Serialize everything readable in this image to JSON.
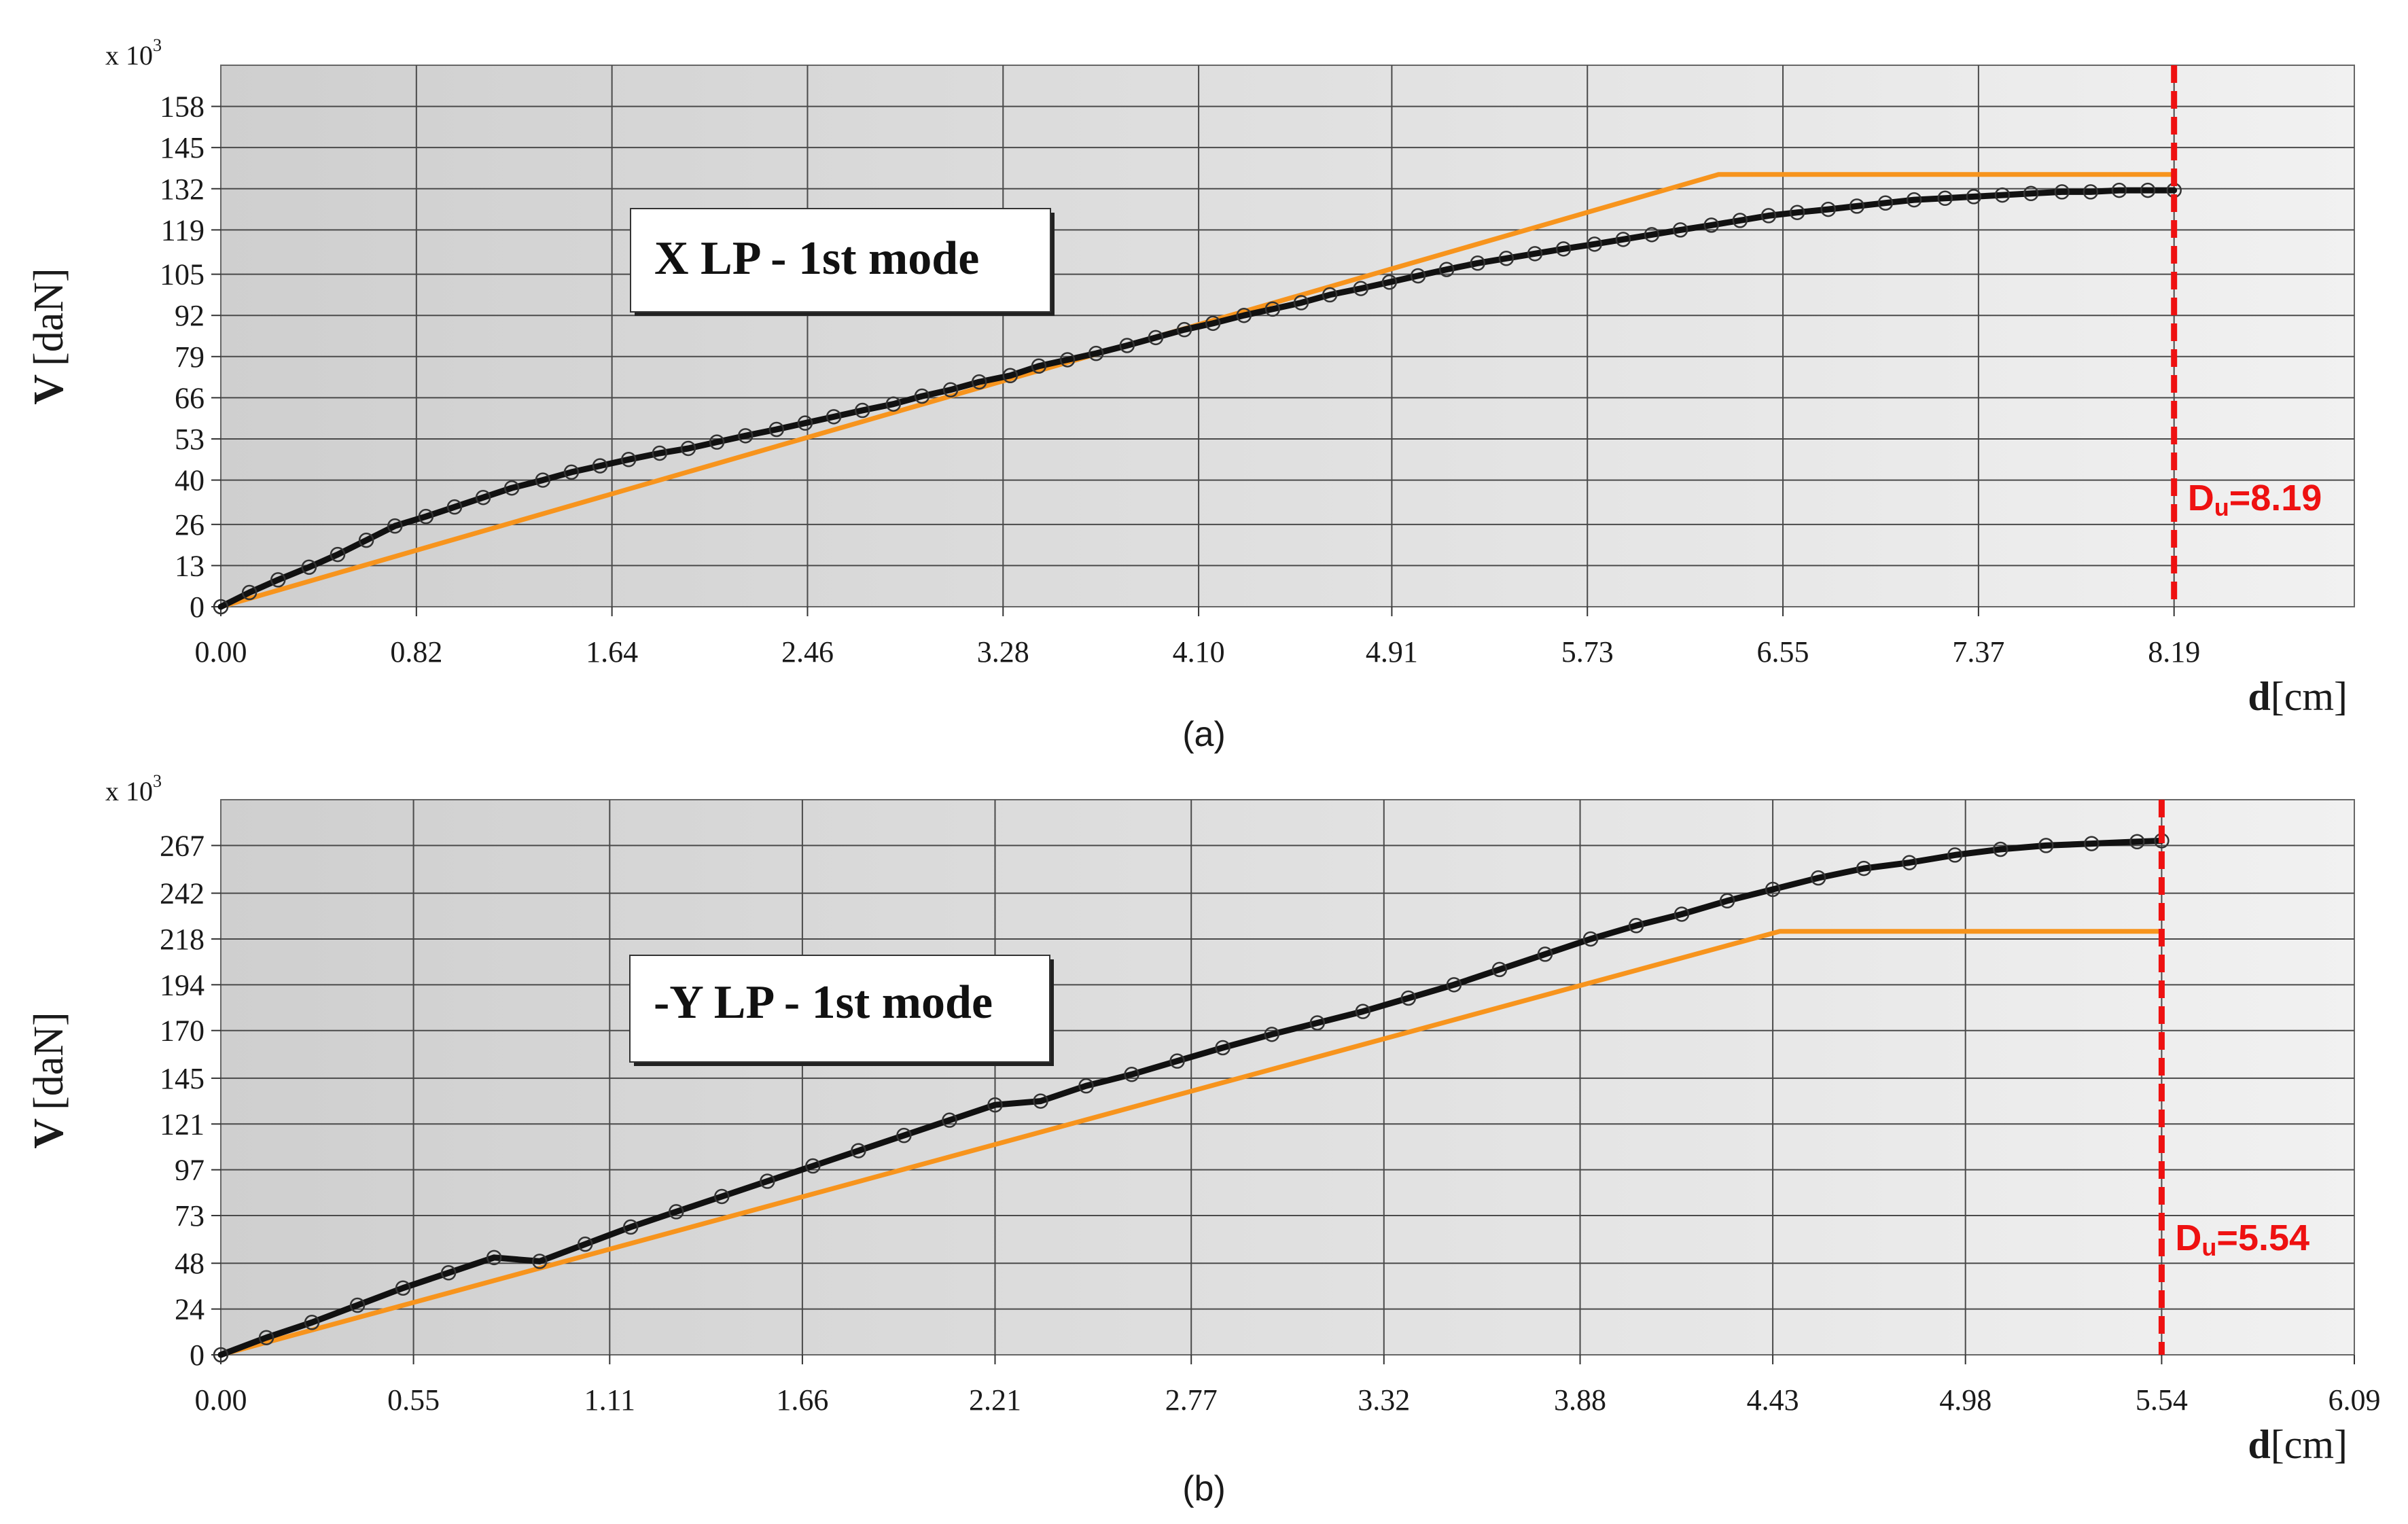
{
  "chart_data": [
    {
      "type": "line",
      "caption": "(a)",
      "annotation": "X LP - 1st mode",
      "ylabel_main": "V",
      "ylabel_unit": "[daN]",
      "ylabel_multiplier": "x 10",
      "ylabel_multiplier_exp": "3",
      "xlabel_main": "d",
      "xlabel_unit": "[cm]",
      "xlim": [
        0,
        9.0
      ],
      "ylim": [
        0,
        171
      ],
      "x_ticks": [
        0.0,
        0.82,
        1.64,
        2.46,
        3.28,
        4.1,
        4.91,
        5.73,
        6.55,
        7.37,
        8.19
      ],
      "x_tick_labels": [
        "0.00",
        "0.82",
        "1.64",
        "2.46",
        "3.28",
        "4.10",
        "4.91",
        "5.73",
        "6.55",
        "7.37",
        "8.19"
      ],
      "y_ticks": [
        0,
        13,
        26,
        40,
        53,
        66,
        79,
        92,
        105,
        119,
        132,
        145,
        158
      ],
      "y_tick_labels": [
        "0",
        "13",
        "26",
        "40",
        "53",
        "66",
        "79",
        "92",
        "105",
        "119",
        "132",
        "145",
        "158"
      ],
      "grid": true,
      "du_value": 8.19,
      "du_label_main": "D",
      "du_label_sub": "u",
      "du_label_value": "=8.19",
      "series": [
        {
          "color": "#f7941d",
          "x": [
            0.0,
            6.28,
            8.19
          ],
          "y": [
            0,
            136.5,
            136.5
          ]
        },
        {
          "color": "#111111",
          "markers": true,
          "x": [
            0.0,
            0.12,
            0.24,
            0.37,
            0.49,
            0.61,
            0.73,
            0.86,
            0.98,
            1.1,
            1.22,
            1.35,
            1.47,
            1.59,
            1.71,
            1.84,
            1.96,
            2.08,
            2.2,
            2.33,
            2.45,
            2.57,
            2.69,
            2.82,
            2.94,
            3.06,
            3.18,
            3.31,
            3.43,
            3.55,
            3.67,
            3.8,
            3.92,
            4.04,
            4.16,
            4.29,
            4.41,
            4.53,
            4.65,
            4.78,
            4.9,
            5.02,
            5.14,
            5.27,
            5.39,
            5.51,
            5.63,
            5.76,
            5.88,
            6.0,
            6.12,
            6.25,
            6.37,
            6.49,
            6.61,
            6.74,
            6.86,
            6.98,
            7.1,
            7.23,
            7.35,
            7.47,
            7.59,
            7.72,
            7.84,
            7.96,
            8.08,
            8.19
          ],
          "y": [
            0,
            4.5,
            8.5,
            12.5,
            16.5,
            21,
            25.5,
            28.5,
            31.5,
            34.5,
            37.5,
            40,
            42.5,
            44.5,
            46.5,
            48.5,
            50,
            52,
            54,
            56,
            58,
            60,
            62,
            64,
            66.5,
            68.5,
            71,
            73,
            76,
            78,
            80,
            82.5,
            85,
            87.5,
            89.5,
            92,
            94,
            96,
            98.5,
            100.5,
            102.5,
            104.5,
            106.5,
            108.5,
            110,
            111.5,
            113,
            114.5,
            116,
            117.5,
            119,
            120.5,
            122,
            123.5,
            124.5,
            125.5,
            126.5,
            127.5,
            128.5,
            129,
            129.5,
            130,
            130.5,
            131,
            131,
            131.5,
            131.5,
            131.5
          ]
        }
      ]
    },
    {
      "type": "line",
      "caption": "(b)",
      "annotation": "-Y LP - 1st mode",
      "ylabel_main": "V",
      "ylabel_unit": "[daN]",
      "ylabel_multiplier": "x 10",
      "ylabel_multiplier_exp": "3",
      "xlabel_main": "d",
      "xlabel_unit": "[cm]",
      "xlim": [
        0,
        6.09
      ],
      "ylim": [
        0,
        291
      ],
      "x_ticks": [
        0.0,
        0.55,
        1.11,
        1.66,
        2.21,
        2.77,
        3.32,
        3.88,
        4.43,
        4.98,
        5.54,
        6.09
      ],
      "x_tick_labels": [
        "0.00",
        "0.55",
        "1.11",
        "1.66",
        "2.21",
        "2.77",
        "3.32",
        "3.88",
        "4.43",
        "4.98",
        "5.54",
        "6.09"
      ],
      "y_ticks": [
        0,
        24,
        48,
        73,
        97,
        121,
        145,
        170,
        194,
        218,
        242,
        267
      ],
      "y_tick_labels": [
        "0",
        "24",
        "48",
        "73",
        "97",
        "121",
        "145",
        "170",
        "194",
        "218",
        "242",
        "267"
      ],
      "grid": true,
      "du_value": 5.54,
      "du_label_main": "D",
      "du_label_sub": "u",
      "du_label_value": "=5.54",
      "series": [
        {
          "color": "#f7941d",
          "x": [
            0.0,
            4.45,
            5.54
          ],
          "y": [
            0,
            222,
            222
          ]
        },
        {
          "color": "#111111",
          "markers": true,
          "x": [
            0.0,
            0.13,
            0.26,
            0.39,
            0.52,
            0.65,
            0.78,
            0.91,
            1.04,
            1.17,
            1.3,
            1.43,
            1.56,
            1.69,
            1.82,
            1.95,
            2.08,
            2.21,
            2.34,
            2.47,
            2.6,
            2.73,
            2.86,
            3.0,
            3.13,
            3.26,
            3.39,
            3.52,
            3.65,
            3.78,
            3.91,
            4.04,
            4.17,
            4.3,
            4.43,
            4.56,
            4.69,
            4.82,
            4.95,
            5.08,
            5.21,
            5.34,
            5.47,
            5.54
          ],
          "y": [
            0,
            9,
            17,
            26,
            35,
            43,
            51,
            49,
            58,
            67,
            75,
            83,
            91,
            99,
            107,
            115,
            123,
            131,
            133,
            141,
            147,
            154,
            161,
            168,
            174,
            180,
            187,
            194,
            202,
            210,
            218,
            225,
            231,
            238,
            244,
            250,
            255,
            258,
            262,
            265,
            267,
            268,
            269,
            269.5
          ]
        }
      ]
    }
  ]
}
